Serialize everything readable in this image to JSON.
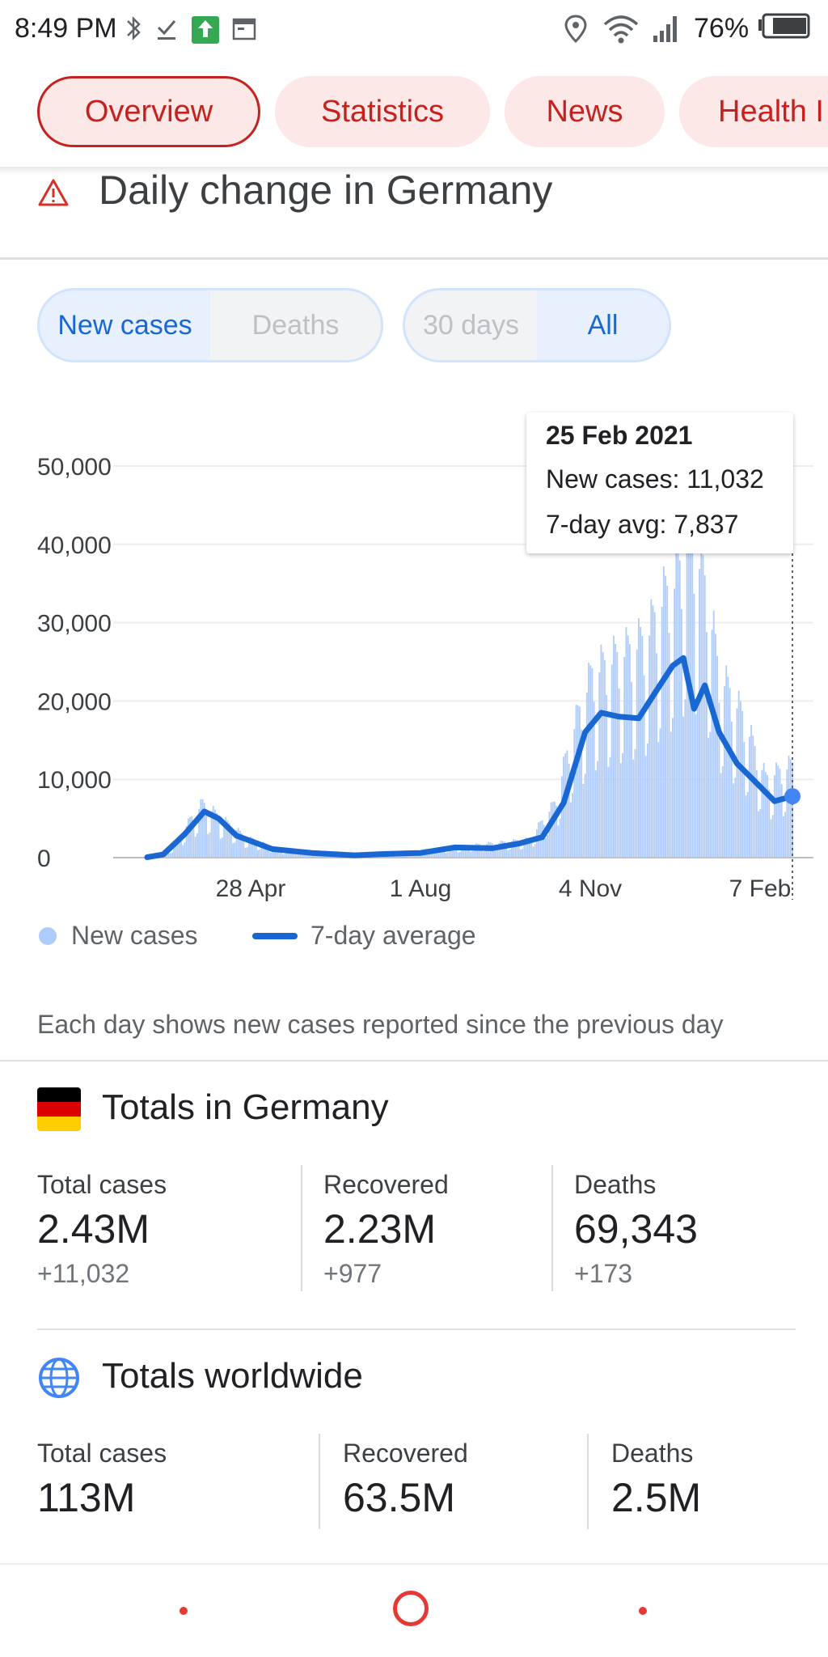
{
  "status_bar": {
    "time": "8:49 PM",
    "battery_percent": "76%",
    "icons": [
      "bluetooth-icon",
      "download-done-icon",
      "app-update-icon",
      "calendar-icon",
      "location-icon",
      "wifi-icon",
      "signal-icon",
      "battery-icon"
    ]
  },
  "tabs": [
    {
      "label": "Overview",
      "active": true
    },
    {
      "label": "Statistics",
      "active": false
    },
    {
      "label": "News",
      "active": false
    },
    {
      "label": "Health I",
      "active": false
    }
  ],
  "section": {
    "title": "Daily change in Germany",
    "icon": "warning-icon"
  },
  "metric_toggle": {
    "options": [
      "New cases",
      "Deaths"
    ],
    "selected": "New cases"
  },
  "range_toggle": {
    "options": [
      "30 days",
      "All"
    ],
    "selected": "All"
  },
  "tooltip": {
    "date": "25 Feb 2021",
    "new_cases_text": "New cases: 11,032",
    "avg_text": "7-day avg: 7,837"
  },
  "chart_data": {
    "type": "bar",
    "y_ticks": [
      "50,000",
      "40,000",
      "30,000",
      "20,000",
      "10,000",
      "0"
    ],
    "x_ticks": [
      "28 Apr",
      "1 Aug",
      "4 Nov",
      "7 Feb"
    ],
    "ylim": [
      0,
      50000
    ],
    "grid": true,
    "legend_position": "bottom",
    "series": [
      {
        "name": "New cases",
        "kind": "bar",
        "color": "#aecbfa",
        "points": [
          {
            "date": "2020-03-01",
            "value": 100
          },
          {
            "date": "2020-03-15",
            "value": 1200
          },
          {
            "date": "2020-03-25",
            "value": 4500
          },
          {
            "date": "2020-04-01",
            "value": 6500
          },
          {
            "date": "2020-04-10",
            "value": 5000
          },
          {
            "date": "2020-04-25",
            "value": 2500
          },
          {
            "date": "2020-05-15",
            "value": 900
          },
          {
            "date": "2020-06-15",
            "value": 500
          },
          {
            "date": "2020-07-15",
            "value": 400
          },
          {
            "date": "2020-08-15",
            "value": 1200
          },
          {
            "date": "2020-09-15",
            "value": 1800
          },
          {
            "date": "2020-10-01",
            "value": 2200
          },
          {
            "date": "2020-10-15",
            "value": 6500
          },
          {
            "date": "2020-10-25",
            "value": 15000
          },
          {
            "date": "2020-11-05",
            "value": 22000
          },
          {
            "date": "2020-11-20",
            "value": 24000
          },
          {
            "date": "2020-12-05",
            "value": 26000
          },
          {
            "date": "2020-12-15",
            "value": 31000
          },
          {
            "date": "2020-12-22",
            "value": 33000
          },
          {
            "date": "2020-12-30",
            "value": 39000
          },
          {
            "date": "2021-01-08",
            "value": 32000
          },
          {
            "date": "2021-01-15",
            "value": 22000
          },
          {
            "date": "2021-01-28",
            "value": 17000
          },
          {
            "date": "2021-02-10",
            "value": 9500
          },
          {
            "date": "2021-02-25",
            "value": 11032
          }
        ]
      },
      {
        "name": "7-day average",
        "kind": "line",
        "color": "#1967d2",
        "points": [
          {
            "date": "2020-03-01",
            "value": 50
          },
          {
            "date": "2020-03-10",
            "value": 400
          },
          {
            "date": "2020-03-22",
            "value": 3000
          },
          {
            "date": "2020-04-02",
            "value": 5900
          },
          {
            "date": "2020-04-10",
            "value": 5000
          },
          {
            "date": "2020-04-20",
            "value": 2800
          },
          {
            "date": "2020-05-10",
            "value": 1100
          },
          {
            "date": "2020-06-01",
            "value": 600
          },
          {
            "date": "2020-06-25",
            "value": 300
          },
          {
            "date": "2020-07-10",
            "value": 450
          },
          {
            "date": "2020-08-01",
            "value": 600
          },
          {
            "date": "2020-08-20",
            "value": 1300
          },
          {
            "date": "2020-09-10",
            "value": 1200
          },
          {
            "date": "2020-09-25",
            "value": 1800
          },
          {
            "date": "2020-10-08",
            "value": 2600
          },
          {
            "date": "2020-10-20",
            "value": 7000
          },
          {
            "date": "2020-11-01",
            "value": 16000
          },
          {
            "date": "2020-11-10",
            "value": 18500
          },
          {
            "date": "2020-11-20",
            "value": 18000
          },
          {
            "date": "2020-12-01",
            "value": 17800
          },
          {
            "date": "2020-12-10",
            "value": 21000
          },
          {
            "date": "2020-12-20",
            "value": 24500
          },
          {
            "date": "2020-12-26",
            "value": 25500
          },
          {
            "date": "2021-01-01",
            "value": 19000
          },
          {
            "date": "2021-01-07",
            "value": 22000
          },
          {
            "date": "2021-01-15",
            "value": 16000
          },
          {
            "date": "2021-01-25",
            "value": 12000
          },
          {
            "date": "2021-02-05",
            "value": 9500
          },
          {
            "date": "2021-02-15",
            "value": 7200
          },
          {
            "date": "2021-02-25",
            "value": 7837
          }
        ]
      }
    ]
  },
  "legend": {
    "new_cases": "New cases",
    "avg": "7-day average"
  },
  "note": "Each day shows new cases reported since the previous day",
  "totals_germany": {
    "title": "Totals in Germany",
    "total_cases": {
      "label": "Total cases",
      "value": "2.43M",
      "delta": "+11,032"
    },
    "recovered": {
      "label": "Recovered",
      "value": "2.23M",
      "delta": "+977"
    },
    "deaths": {
      "label": "Deaths",
      "value": "69,343",
      "delta": "+173"
    }
  },
  "totals_world": {
    "title": "Totals worldwide",
    "icon": "globe-icon",
    "total_cases": {
      "label": "Total cases",
      "value": "113M"
    },
    "recovered": {
      "label": "Recovered",
      "value": "63.5M"
    },
    "deaths": {
      "label": "Deaths",
      "value": "2.5M"
    }
  }
}
